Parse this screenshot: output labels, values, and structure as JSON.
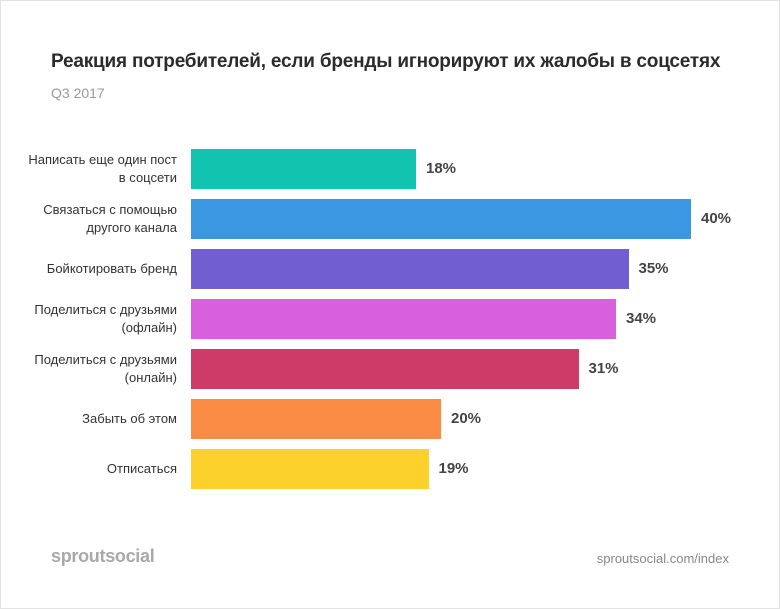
{
  "chart_data": {
    "type": "bar",
    "orientation": "horizontal",
    "title": "Реакция потребителей, если бренды игнорируют их жалобы в соцсетях",
    "subtitle": "Q3 2017",
    "categories": [
      "Написать еще один пост в соцсети",
      "Связаться с помощью другого канала",
      "Бойкотировать бренд",
      "Поделиться с друзьями (офлайн)",
      "Поделиться с друзьями (онлайн)",
      "Забыть об этом",
      "Отписаться"
    ],
    "values": [
      18,
      40,
      35,
      34,
      31,
      20,
      19
    ],
    "value_labels": [
      "18%",
      "40%",
      "35%",
      "34%",
      "31%",
      "20%",
      "19%"
    ],
    "colors": [
      "#12c3b0",
      "#3b97e2",
      "#715ed0",
      "#d960dc",
      "#cf3b69",
      "#fb8c45",
      "#fdd12b"
    ]
  },
  "footer": {
    "brand": "sproutsocial",
    "source": "sproutsocial.com/index"
  }
}
